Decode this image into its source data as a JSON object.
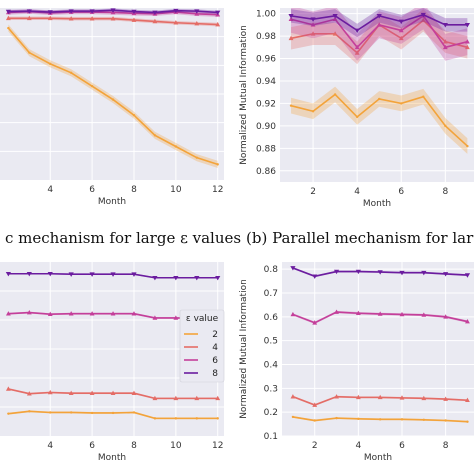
{
  "captions": {
    "top_left": "c mechanism for large ε values",
    "top_right": "(b) Parallel mechanism for larg"
  },
  "legend": {
    "title": "ε value",
    "entries": [
      "2",
      "4",
      "6",
      "8"
    ]
  },
  "series_colors": {
    "2": "#f3a33a",
    "4": "#e46c66",
    "6": "#c43f9a",
    "8": "#6b1c9f"
  },
  "chart_data": [
    {
      "id": "top-left",
      "type": "line",
      "xlabel": "Month",
      "ylabel": "",
      "xticks": [
        4,
        6,
        8,
        10,
        12
      ],
      "yticks": [],
      "xlim": [
        1.6,
        12.3
      ],
      "ylim": [
        0.62,
        1.005
      ],
      "grid": true,
      "series": [
        {
          "key": "2",
          "x": [
            2,
            3,
            4,
            5,
            6,
            7,
            8,
            9,
            10,
            11,
            12
          ],
          "y": [
            0.96,
            0.905,
            0.88,
            0.86,
            0.83,
            0.8,
            0.765,
            0.72,
            0.695,
            0.67,
            0.655
          ],
          "band": 0.008
        },
        {
          "key": "4",
          "x": [
            2,
            3,
            4,
            5,
            6,
            7,
            8,
            9,
            10,
            11,
            12
          ],
          "y": [
            0.982,
            0.982,
            0.982,
            0.981,
            0.981,
            0.981,
            0.978,
            0.975,
            0.972,
            0.97,
            0.968
          ],
          "band": 0.004
        },
        {
          "key": "6",
          "x": [
            2,
            3,
            4,
            5,
            6,
            7,
            8,
            9,
            10,
            11,
            12
          ],
          "y": [
            0.995,
            0.997,
            0.994,
            0.996,
            0.996,
            0.995,
            0.993,
            0.992,
            0.996,
            0.992,
            0.99
          ],
          "band": 0.005
        },
        {
          "key": "8",
          "x": [
            2,
            3,
            4,
            5,
            6,
            7,
            8,
            9,
            10,
            11,
            12
          ],
          "y": [
            0.997,
            0.998,
            0.996,
            0.998,
            0.998,
            1.0,
            0.997,
            0.995,
            0.999,
            0.998,
            0.995
          ],
          "band": 0.004
        }
      ]
    },
    {
      "id": "top-right",
      "type": "line",
      "xlabel": "Month",
      "ylabel": "Normalized Mutual Information",
      "xticks": [
        2,
        4,
        6,
        8
      ],
      "yticks": [
        0.86,
        0.88,
        0.9,
        0.92,
        0.94,
        0.96,
        0.98,
        1.0
      ],
      "ytick_labels": [
        "0.86",
        "0.88",
        "0.90",
        "0.92",
        "0.94",
        "0.96",
        "0.98",
        "1.00"
      ],
      "xlim": [
        0.5,
        9.3
      ],
      "ylim": [
        0.85,
        1.005
      ],
      "grid": true,
      "series": [
        {
          "key": "2",
          "x": [
            1,
            2,
            3,
            4,
            5,
            6,
            7,
            8,
            9
          ],
          "y": [
            0.918,
            0.913,
            0.928,
            0.908,
            0.924,
            0.92,
            0.926,
            0.9,
            0.882
          ],
          "band": 0.007
        },
        {
          "key": "4",
          "x": [
            1,
            2,
            3,
            4,
            5,
            6,
            7,
            8,
            9
          ],
          "y": [
            0.978,
            0.982,
            0.982,
            0.965,
            0.99,
            0.978,
            0.994,
            0.975,
            0.97
          ],
          "band": 0.01
        },
        {
          "key": "6",
          "x": [
            1,
            2,
            3,
            4,
            5,
            6,
            7,
            8,
            9
          ],
          "y": [
            0.995,
            0.99,
            0.995,
            0.97,
            0.99,
            0.985,
            0.998,
            0.97,
            0.975
          ],
          "band": 0.012
        },
        {
          "key": "8",
          "x": [
            1,
            2,
            3,
            4,
            5,
            6,
            7,
            8,
            9
          ],
          "y": [
            0.998,
            0.995,
            0.998,
            0.985,
            0.998,
            0.993,
            0.999,
            0.99,
            0.99
          ],
          "band": 0.006
        }
      ]
    },
    {
      "id": "bottom-left",
      "type": "line",
      "xlabel": "Month",
      "ylabel": "",
      "xticks": [
        4,
        6,
        8,
        10,
        12
      ],
      "yticks": [],
      "xlim": [
        1.6,
        12.3
      ],
      "ylim": [
        0.08,
        0.82
      ],
      "grid": true,
      "series": [
        {
          "key": "2",
          "x": [
            2,
            3,
            4,
            5,
            6,
            7,
            8,
            9,
            10,
            11,
            12
          ],
          "y": [
            0.175,
            0.185,
            0.18,
            0.18,
            0.178,
            0.178,
            0.18,
            0.155,
            0.155,
            0.155,
            0.155
          ],
          "band": 0.004
        },
        {
          "key": "4",
          "x": [
            2,
            3,
            4,
            5,
            6,
            7,
            8,
            9,
            10,
            11,
            12
          ],
          "y": [
            0.28,
            0.26,
            0.265,
            0.262,
            0.262,
            0.262,
            0.262,
            0.24,
            0.24,
            0.24,
            0.24
          ],
          "band": 0.004
        },
        {
          "key": "6",
          "x": [
            2,
            3,
            4,
            5,
            6,
            7,
            8,
            9,
            10,
            11,
            12
          ],
          "y": [
            0.6,
            0.605,
            0.598,
            0.6,
            0.6,
            0.6,
            0.6,
            0.582,
            0.582,
            0.58,
            0.58
          ],
          "band": 0.004
        },
        {
          "key": "8",
          "x": [
            2,
            3,
            4,
            5,
            6,
            7,
            8,
            9,
            10,
            11,
            12
          ],
          "y": [
            0.77,
            0.77,
            0.77,
            0.768,
            0.768,
            0.768,
            0.768,
            0.753,
            0.753,
            0.753,
            0.753
          ],
          "band": 0.003
        }
      ]
    },
    {
      "id": "bottom-right",
      "type": "line",
      "xlabel": "Month",
      "ylabel": "Normalized Mutual Information",
      "xticks": [
        2,
        4,
        6,
        8
      ],
      "yticks": [
        0.1,
        0.2,
        0.3,
        0.4,
        0.5,
        0.6,
        0.7,
        0.8
      ],
      "ytick_labels": [
        "0.1",
        "0.2",
        "0.3",
        "0.4",
        "0.5",
        "0.6",
        "0.7",
        "0.8"
      ],
      "xlim": [
        0.5,
        9.3
      ],
      "ylim": [
        0.1,
        0.83
      ],
      "grid": true,
      "series": [
        {
          "key": "2",
          "x": [
            1,
            2,
            3,
            4,
            5,
            6,
            7,
            8,
            9
          ],
          "y": [
            0.18,
            0.165,
            0.175,
            0.172,
            0.17,
            0.17,
            0.168,
            0.165,
            0.16
          ],
          "band": 0.004
        },
        {
          "key": "4",
          "x": [
            1,
            2,
            3,
            4,
            5,
            6,
            7,
            8,
            9
          ],
          "y": [
            0.265,
            0.23,
            0.265,
            0.262,
            0.262,
            0.26,
            0.258,
            0.255,
            0.25
          ],
          "band": 0.004
        },
        {
          "key": "6",
          "x": [
            1,
            2,
            3,
            4,
            5,
            6,
            7,
            8,
            9
          ],
          "y": [
            0.61,
            0.575,
            0.62,
            0.615,
            0.612,
            0.61,
            0.608,
            0.6,
            0.58
          ],
          "band": 0.005
        },
        {
          "key": "8",
          "x": [
            1,
            2,
            3,
            4,
            5,
            6,
            7,
            8,
            9
          ],
          "y": [
            0.805,
            0.77,
            0.79,
            0.79,
            0.788,
            0.785,
            0.785,
            0.78,
            0.775
          ],
          "band": 0.004
        }
      ]
    }
  ]
}
